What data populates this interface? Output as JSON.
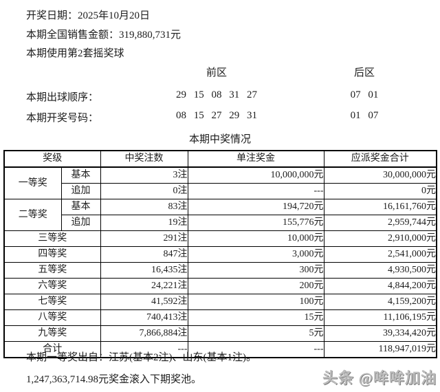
{
  "colors": {
    "background": "#ffffff",
    "text": "#1c1c1c",
    "table_border": "#000000",
    "watermark": "#bcbcbc"
  },
  "info": {
    "draw_date_label": "开奖日期：",
    "draw_date": "2025年10月20日",
    "sales_label": "本期全国销售金额：",
    "sales_amount": "319,880,731元",
    "ball_set": "本期使用第2套摇奖球"
  },
  "zones": {
    "front_label": "前区",
    "back_label": "后区"
  },
  "ball_order": {
    "label": "本期出球顺序：",
    "front": "29 15 08 31 27",
    "back": "07 01"
  },
  "winning_numbers": {
    "label": "本期开奖号码：",
    "front": "08 15 27 29 31",
    "back": "01 07"
  },
  "prize_table": {
    "title": "本期中奖情况",
    "headers": {
      "level": "奖级",
      "count": "中奖注数",
      "unit_prize": "单注奖金",
      "total_prize": "应派奖金合计"
    },
    "rows": [
      {
        "level": "一等奖",
        "sub": "基本",
        "count": "3注",
        "unit": "10,000,000元",
        "total": "30,000,000元"
      },
      {
        "sub": "追加",
        "count": "0注",
        "unit": "---",
        "total": "0元"
      },
      {
        "level": "二等奖",
        "sub": "基本",
        "count": "83注",
        "unit": "194,720元",
        "total": "16,161,760元"
      },
      {
        "sub": "追加",
        "count": "19注",
        "unit": "155,776元",
        "total": "2,959,744元"
      },
      {
        "level": "三等奖",
        "count": "291注",
        "unit": "10,000元",
        "total": "2,910,000元"
      },
      {
        "level": "四等奖",
        "count": "847注",
        "unit": "3,000元",
        "total": "2,541,000元"
      },
      {
        "level": "五等奖",
        "count": "16,435注",
        "unit": "300元",
        "total": "4,930,500元"
      },
      {
        "level": "六等奖",
        "count": "24,221注",
        "unit": "200元",
        "total": "4,844,200元"
      },
      {
        "level": "七等奖",
        "count": "41,592注",
        "unit": "100元",
        "total": "4,159,200元"
      },
      {
        "level": "八等奖",
        "count": "740,413注",
        "unit": "15元",
        "total": "11,106,195元"
      },
      {
        "level": "九等奖",
        "count": "7,866,884注",
        "unit": "5元",
        "total": "39,334,420元"
      },
      {
        "level": "合计",
        "count": "---",
        "unit": "---",
        "total": "118,947,019元"
      }
    ]
  },
  "footer": {
    "first_prize_source": "本期一等奖出自：江苏(基本2注)、山东(基本1注)。",
    "rollover": "1,247,363,714.98元奖金滚入下期奖池。"
  },
  "watermark": "头条 @哞哞加油"
}
